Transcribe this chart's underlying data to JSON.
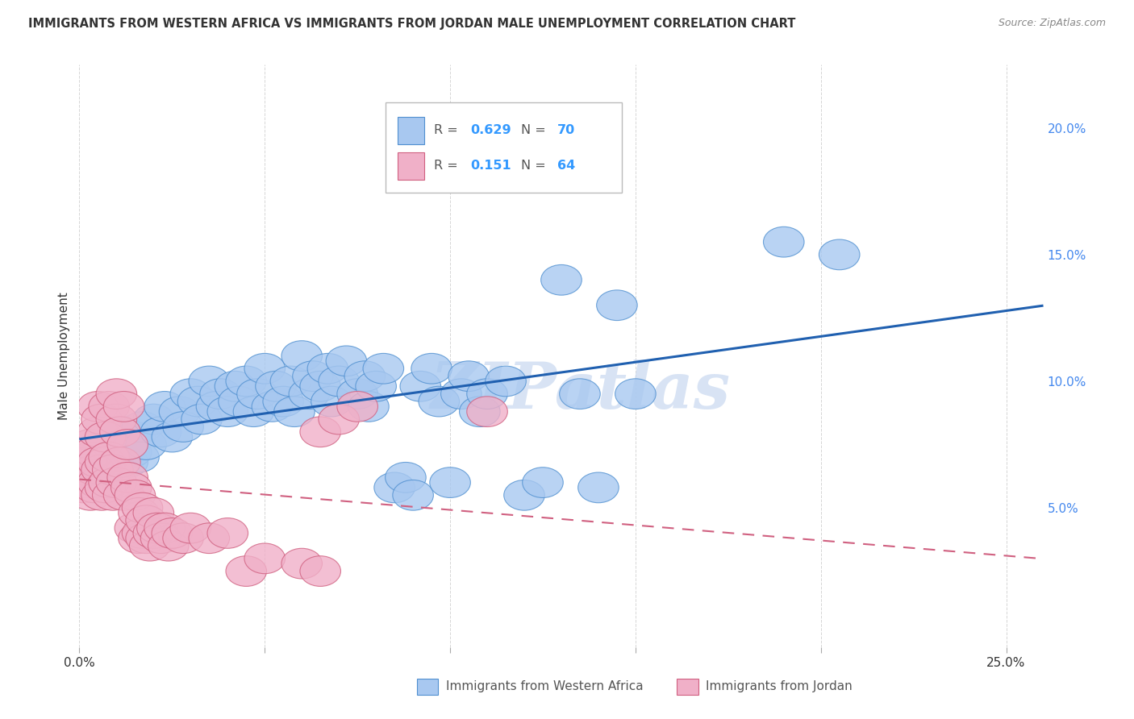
{
  "title": "IMMIGRANTS FROM WESTERN AFRICA VS IMMIGRANTS FROM JORDAN MALE UNEMPLOYMENT CORRELATION CHART",
  "source": "Source: ZipAtlas.com",
  "ylabel": "Male Unemployment",
  "right_yticks": [
    "5.0%",
    "10.0%",
    "15.0%",
    "20.0%"
  ],
  "right_ytick_vals": [
    0.05,
    0.1,
    0.15,
    0.2
  ],
  "xlim": [
    0.0,
    0.26
  ],
  "ylim": [
    -0.005,
    0.225
  ],
  "legend_blue_R": "0.629",
  "legend_blue_N": "70",
  "legend_pink_R": "0.151",
  "legend_pink_N": "64",
  "blue_fill": "#A8C8F0",
  "blue_edge": "#5090D0",
  "pink_fill": "#F0B0C8",
  "pink_edge": "#D06080",
  "blue_line_color": "#2060B0",
  "pink_line_color": "#D06080",
  "watermark_text": "ZIPatlas",
  "watermark_color": "#C8D8F0",
  "blue_scatter": [
    [
      0.005,
      0.068
    ],
    [
      0.006,
      0.072
    ],
    [
      0.007,
      0.065
    ],
    [
      0.008,
      0.07
    ],
    [
      0.01,
      0.075
    ],
    [
      0.012,
      0.08
    ],
    [
      0.013,
      0.068
    ],
    [
      0.014,
      0.072
    ],
    [
      0.015,
      0.078
    ],
    [
      0.016,
      0.07
    ],
    [
      0.017,
      0.082
    ],
    [
      0.018,
      0.075
    ],
    [
      0.02,
      0.085
    ],
    [
      0.022,
      0.08
    ],
    [
      0.023,
      0.09
    ],
    [
      0.025,
      0.078
    ],
    [
      0.027,
      0.088
    ],
    [
      0.028,
      0.082
    ],
    [
      0.03,
      0.095
    ],
    [
      0.032,
      0.092
    ],
    [
      0.033,
      0.085
    ],
    [
      0.035,
      0.1
    ],
    [
      0.037,
      0.09
    ],
    [
      0.038,
      0.095
    ],
    [
      0.04,
      0.088
    ],
    [
      0.042,
      0.098
    ],
    [
      0.043,
      0.092
    ],
    [
      0.045,
      0.1
    ],
    [
      0.047,
      0.088
    ],
    [
      0.048,
      0.095
    ],
    [
      0.05,
      0.105
    ],
    [
      0.052,
      0.09
    ],
    [
      0.053,
      0.098
    ],
    [
      0.055,
      0.092
    ],
    [
      0.057,
      0.1
    ],
    [
      0.058,
      0.088
    ],
    [
      0.06,
      0.11
    ],
    [
      0.062,
      0.095
    ],
    [
      0.063,
      0.102
    ],
    [
      0.065,
      0.098
    ],
    [
      0.067,
      0.105
    ],
    [
      0.068,
      0.092
    ],
    [
      0.07,
      0.1
    ],
    [
      0.072,
      0.108
    ],
    [
      0.075,
      0.095
    ],
    [
      0.077,
      0.102
    ],
    [
      0.078,
      0.09
    ],
    [
      0.08,
      0.098
    ],
    [
      0.082,
      0.105
    ],
    [
      0.085,
      0.058
    ],
    [
      0.088,
      0.062
    ],
    [
      0.09,
      0.055
    ],
    [
      0.092,
      0.098
    ],
    [
      0.095,
      0.105
    ],
    [
      0.097,
      0.092
    ],
    [
      0.1,
      0.06
    ],
    [
      0.103,
      0.095
    ],
    [
      0.105,
      0.102
    ],
    [
      0.108,
      0.088
    ],
    [
      0.11,
      0.095
    ],
    [
      0.115,
      0.1
    ],
    [
      0.12,
      0.055
    ],
    [
      0.125,
      0.06
    ],
    [
      0.13,
      0.14
    ],
    [
      0.135,
      0.095
    ],
    [
      0.14,
      0.058
    ],
    [
      0.145,
      0.13
    ],
    [
      0.15,
      0.095
    ],
    [
      0.19,
      0.155
    ],
    [
      0.205,
      0.15
    ]
  ],
  "pink_scatter": [
    [
      0.0,
      0.068
    ],
    [
      0.001,
      0.058
    ],
    [
      0.001,
      0.065
    ],
    [
      0.002,
      0.06
    ],
    [
      0.002,
      0.068
    ],
    [
      0.003,
      0.055
    ],
    [
      0.003,
      0.07
    ],
    [
      0.003,
      0.075
    ],
    [
      0.004,
      0.058
    ],
    [
      0.004,
      0.065
    ],
    [
      0.004,
      0.072
    ],
    [
      0.005,
      0.06
    ],
    [
      0.005,
      0.068
    ],
    [
      0.005,
      0.08
    ],
    [
      0.005,
      0.09
    ],
    [
      0.006,
      0.055
    ],
    [
      0.006,
      0.065
    ],
    [
      0.006,
      0.085
    ],
    [
      0.007,
      0.058
    ],
    [
      0.007,
      0.068
    ],
    [
      0.007,
      0.078
    ],
    [
      0.008,
      0.06
    ],
    [
      0.008,
      0.07
    ],
    [
      0.008,
      0.09
    ],
    [
      0.009,
      0.055
    ],
    [
      0.009,
      0.065
    ],
    [
      0.01,
      0.085
    ],
    [
      0.01,
      0.095
    ],
    [
      0.01,
      0.06
    ],
    [
      0.011,
      0.068
    ],
    [
      0.011,
      0.08
    ],
    [
      0.012,
      0.055
    ],
    [
      0.012,
      0.09
    ],
    [
      0.013,
      0.062
    ],
    [
      0.013,
      0.075
    ],
    [
      0.014,
      0.058
    ],
    [
      0.015,
      0.042
    ],
    [
      0.015,
      0.055
    ],
    [
      0.016,
      0.038
    ],
    [
      0.016,
      0.048
    ],
    [
      0.017,
      0.04
    ],
    [
      0.017,
      0.05
    ],
    [
      0.018,
      0.038
    ],
    [
      0.018,
      0.045
    ],
    [
      0.019,
      0.035
    ],
    [
      0.02,
      0.04
    ],
    [
      0.02,
      0.048
    ],
    [
      0.021,
      0.042
    ],
    [
      0.022,
      0.038
    ],
    [
      0.023,
      0.042
    ],
    [
      0.024,
      0.035
    ],
    [
      0.025,
      0.04
    ],
    [
      0.028,
      0.038
    ],
    [
      0.03,
      0.042
    ],
    [
      0.035,
      0.038
    ],
    [
      0.04,
      0.04
    ],
    [
      0.045,
      0.025
    ],
    [
      0.05,
      0.03
    ],
    [
      0.06,
      0.028
    ],
    [
      0.065,
      0.025
    ],
    [
      0.065,
      0.08
    ],
    [
      0.07,
      0.085
    ],
    [
      0.075,
      0.09
    ],
    [
      0.11,
      0.088
    ]
  ]
}
